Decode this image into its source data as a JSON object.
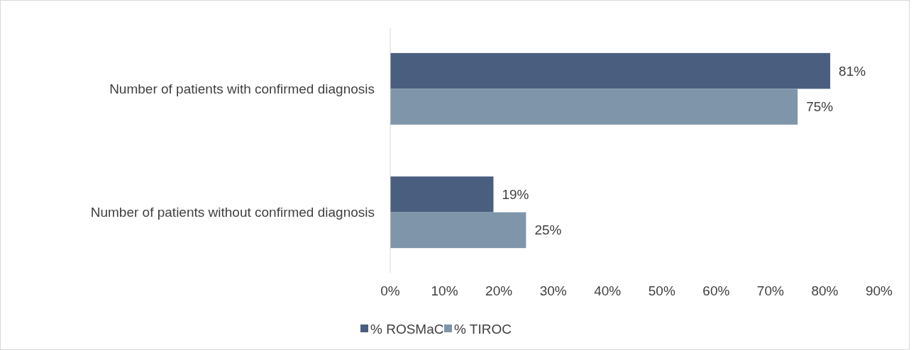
{
  "chart_data": {
    "type": "bar",
    "orientation": "horizontal",
    "categories": [
      "Number of patients with confirmed diagnosis",
      "Number of patients without confirmed diagnosis"
    ],
    "series": [
      {
        "name": "% ROSMaC",
        "color": "#4a5f80",
        "values": [
          81,
          19
        ]
      },
      {
        "name": "% TIROC",
        "color": "#7f95aa",
        "values": [
          75,
          25
        ]
      }
    ],
    "xlim": [
      0,
      90
    ],
    "xticks": [
      {
        "value": 0,
        "label": "0%"
      },
      {
        "value": 10,
        "label": "10%"
      },
      {
        "value": 20,
        "label": "20%"
      },
      {
        "value": 30,
        "label": "30%"
      },
      {
        "value": 40,
        "label": "40%"
      },
      {
        "value": 50,
        "label": "50%"
      },
      {
        "value": 60,
        "label": "60%"
      },
      {
        "value": 70,
        "label": "70%"
      },
      {
        "value": 80,
        "label": "80%"
      },
      {
        "value": 90,
        "label": "90%"
      }
    ],
    "value_labels": [
      [
        "81%",
        "19%"
      ],
      [
        "75%",
        "25%"
      ]
    ],
    "legend": "bottom",
    "grid": false
  }
}
